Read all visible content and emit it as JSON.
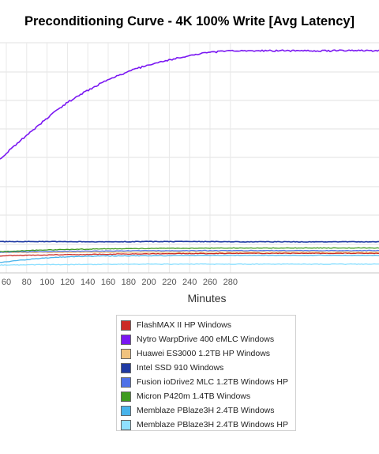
{
  "chart_data": {
    "type": "line",
    "title": "Preconditioning Curve - 4K 100% Write [Avg Latency]",
    "xlabel": "Minutes",
    "ylabel": "",
    "x_ticks": [
      60,
      80,
      100,
      120,
      140,
      160,
      180,
      200,
      220,
      240,
      260,
      280
    ],
    "xlim": [
      54,
      282
    ],
    "ylim": [
      0,
      1
    ],
    "grid": true,
    "legend_position": "bottom",
    "series": [
      {
        "name": "FlashMAX II HP Windows",
        "color": "#cc2a24",
        "x": [
          54,
          100,
          150,
          200,
          250,
          282
        ],
        "y": [
          0.074,
          0.078,
          0.081,
          0.083,
          0.084,
          0.085
        ]
      },
      {
        "name": "Nytro WarpDrive 400 eMLC Windows",
        "color": "#7a17f2",
        "x": [
          54,
          60,
          70,
          80,
          90,
          100,
          110,
          120,
          130,
          140,
          150,
          160,
          170,
          180,
          190,
          200,
          210,
          220,
          230,
          240,
          250,
          260,
          270,
          280,
          282
        ],
        "y": [
          0.493,
          0.52,
          0.56,
          0.598,
          0.635,
          0.672,
          0.707,
          0.74,
          0.768,
          0.793,
          0.817,
          0.838,
          0.857,
          0.875,
          0.89,
          0.903,
          0.915,
          0.925,
          0.935,
          0.943,
          0.952,
          0.958,
          0.962,
          0.965,
          0.965
        ]
      },
      {
        "name": "Huawei ES3000 1.2TB HP Windows",
        "color": "#f0c27e",
        "x": [
          54,
          282
        ],
        "y": [
          0.089,
          0.09
        ]
      },
      {
        "name": "Intel SSD 910 Windows",
        "color": "#1f3aa3",
        "x": [
          54,
          100,
          150,
          200,
          250,
          282
        ],
        "y": [
          0.136,
          0.136,
          0.135,
          0.136,
          0.136,
          0.135
        ]
      },
      {
        "name": "Fusion ioDrive2 MLC 1.2TB Windows HP",
        "color": "#4f72e8",
        "x": [
          54,
          100,
          150,
          200,
          250,
          282
        ],
        "y": [
          0.09,
          0.093,
          0.095,
          0.096,
          0.097,
          0.097
        ]
      },
      {
        "name": "Micron P420m 1.4TB Windows",
        "color": "#3f9b1f",
        "x": [
          54,
          80,
          100,
          150,
          200,
          250,
          282
        ],
        "y": [
          0.092,
          0.097,
          0.1,
          0.104,
          0.106,
          0.107,
          0.108
        ]
      },
      {
        "name": "Memblaze PBlaze3H 2.4TB Windows",
        "color": "#48b3ea",
        "x": [
          54,
          70,
          90,
          110,
          130,
          150,
          180,
          220,
          282
        ],
        "y": [
          0.045,
          0.053,
          0.062,
          0.068,
          0.071,
          0.073,
          0.074,
          0.075,
          0.076
        ]
      },
      {
        "name": "Memblaze PBlaze3H 2.4TB Windows HP",
        "color": "#8fe0ff",
        "x": [
          54,
          100,
          150,
          200,
          282
        ],
        "y": [
          0.034,
          0.036,
          0.037,
          0.038,
          0.038
        ]
      }
    ]
  }
}
